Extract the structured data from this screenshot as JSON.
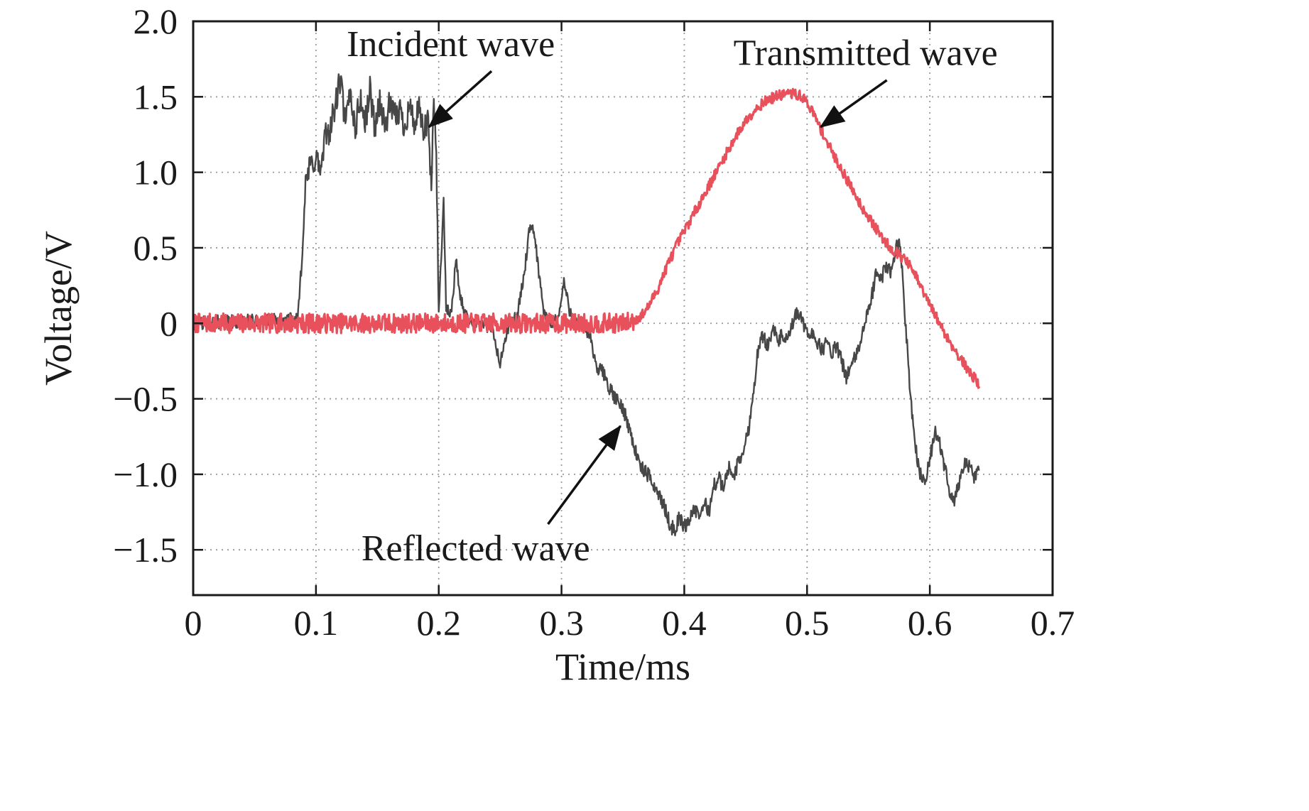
{
  "figure": {
    "background": "#ffffff"
  },
  "chart_data": {
    "type": "line",
    "title": "",
    "xlabel": "Time/ms",
    "ylabel": "Voltage/V",
    "xlim": [
      0,
      0.7
    ],
    "ylim": [
      -1.8,
      2.0
    ],
    "grid": {
      "on": true,
      "style": "dotted",
      "color": "#999999"
    },
    "frame_color": "#1a1a1a",
    "x_ticks": {
      "values": [
        0,
        0.1,
        0.2,
        0.3,
        0.4,
        0.5,
        0.6,
        0.7
      ],
      "labels": [
        "0",
        "0.1",
        "0.2",
        "0.3",
        "0.4",
        "0.5",
        "0.6",
        "0.7"
      ]
    },
    "y_ticks": {
      "values": [
        2.0,
        1.5,
        1.0,
        0.5,
        0,
        -0.5,
        -1.0,
        -1.5
      ],
      "labels": [
        "2.0",
        "1.5",
        "1.0",
        "0.5",
        "0",
        "−0.5",
        "−1.0",
        "−1.5"
      ]
    },
    "series": [
      {
        "name": "Incident / Reflected wave",
        "color": "#474747",
        "width": 2.4,
        "seed": 42,
        "sample_step": 0.0005,
        "noise": [
          {
            "t0": 0.0,
            "t1": 0.088,
            "amp": 0.05
          },
          {
            "t0": 0.088,
            "t1": 0.2,
            "amp": 0.1
          },
          {
            "t0": 0.2,
            "t1": 0.32,
            "amp": 0.045
          },
          {
            "t0": 0.32,
            "t1": 0.641,
            "amp": 0.05
          }
        ],
        "keypoints": [
          [
            0.0,
            0.0
          ],
          [
            0.085,
            0.02
          ],
          [
            0.088,
            0.4
          ],
          [
            0.092,
            0.95
          ],
          [
            0.096,
            1.05
          ],
          [
            0.1,
            1.1
          ],
          [
            0.104,
            1.0
          ],
          [
            0.108,
            1.25
          ],
          [
            0.112,
            1.3
          ],
          [
            0.116,
            1.45
          ],
          [
            0.12,
            1.62
          ],
          [
            0.124,
            1.3
          ],
          [
            0.128,
            1.55
          ],
          [
            0.132,
            1.28
          ],
          [
            0.136,
            1.5
          ],
          [
            0.14,
            1.32
          ],
          [
            0.144,
            1.55
          ],
          [
            0.148,
            1.3
          ],
          [
            0.152,
            1.48
          ],
          [
            0.156,
            1.28
          ],
          [
            0.16,
            1.45
          ],
          [
            0.164,
            1.35
          ],
          [
            0.168,
            1.42
          ],
          [
            0.172,
            1.3
          ],
          [
            0.176,
            1.45
          ],
          [
            0.18,
            1.32
          ],
          [
            0.184,
            1.4
          ],
          [
            0.188,
            1.25
          ],
          [
            0.191,
            1.35
          ],
          [
            0.194,
            0.9
          ],
          [
            0.196,
            1.45
          ],
          [
            0.198,
            1.2
          ],
          [
            0.2,
            0.05
          ],
          [
            0.202,
            0.45
          ],
          [
            0.204,
            0.8
          ],
          [
            0.206,
            0.1
          ],
          [
            0.21,
            0.05
          ],
          [
            0.214,
            0.42
          ],
          [
            0.218,
            0.15
          ],
          [
            0.222,
            0.05
          ],
          [
            0.228,
            0.02
          ],
          [
            0.236,
            0.0
          ],
          [
            0.244,
            -0.05
          ],
          [
            0.25,
            -0.28
          ],
          [
            0.254,
            -0.1
          ],
          [
            0.258,
            0.0
          ],
          [
            0.264,
            0.05
          ],
          [
            0.27,
            0.35
          ],
          [
            0.274,
            0.62
          ],
          [
            0.278,
            0.6
          ],
          [
            0.282,
            0.3
          ],
          [
            0.286,
            0.05
          ],
          [
            0.292,
            0.0
          ],
          [
            0.298,
            0.05
          ],
          [
            0.302,
            0.28
          ],
          [
            0.306,
            0.1
          ],
          [
            0.312,
            0.0
          ],
          [
            0.318,
            -0.02
          ],
          [
            0.324,
            -0.1
          ],
          [
            0.328,
            -0.3
          ],
          [
            0.334,
            -0.32
          ],
          [
            0.34,
            -0.45
          ],
          [
            0.346,
            -0.52
          ],
          [
            0.352,
            -0.6
          ],
          [
            0.358,
            -0.78
          ],
          [
            0.364,
            -0.95
          ],
          [
            0.37,
            -1.0
          ],
          [
            0.376,
            -1.08
          ],
          [
            0.382,
            -1.18
          ],
          [
            0.388,
            -1.32
          ],
          [
            0.392,
            -1.38
          ],
          [
            0.396,
            -1.28
          ],
          [
            0.4,
            -1.35
          ],
          [
            0.404,
            -1.3
          ],
          [
            0.408,
            -1.22
          ],
          [
            0.412,
            -1.3
          ],
          [
            0.416,
            -1.18
          ],
          [
            0.42,
            -1.25
          ],
          [
            0.424,
            -1.08
          ],
          [
            0.428,
            -1.02
          ],
          [
            0.432,
            -1.1
          ],
          [
            0.436,
            -0.95
          ],
          [
            0.44,
            -1.02
          ],
          [
            0.444,
            -0.92
          ],
          [
            0.448,
            -0.85
          ],
          [
            0.452,
            -0.72
          ],
          [
            0.456,
            -0.48
          ],
          [
            0.46,
            -0.18
          ],
          [
            0.464,
            -0.08
          ],
          [
            0.468,
            -0.15
          ],
          [
            0.472,
            -0.02
          ],
          [
            0.476,
            -0.12
          ],
          [
            0.48,
            -0.08
          ],
          [
            0.484,
            -0.12
          ],
          [
            0.488,
            -0.02
          ],
          [
            0.492,
            0.08
          ],
          [
            0.496,
            0.02
          ],
          [
            0.5,
            -0.08
          ],
          [
            0.504,
            -0.05
          ],
          [
            0.508,
            -0.12
          ],
          [
            0.512,
            -0.18
          ],
          [
            0.516,
            -0.12
          ],
          [
            0.52,
            -0.2
          ],
          [
            0.524,
            -0.15
          ],
          [
            0.528,
            -0.25
          ],
          [
            0.532,
            -0.35
          ],
          [
            0.536,
            -0.28
          ],
          [
            0.54,
            -0.22
          ],
          [
            0.544,
            -0.1
          ],
          [
            0.548,
            0.02
          ],
          [
            0.552,
            0.15
          ],
          [
            0.556,
            0.32
          ],
          [
            0.56,
            0.28
          ],
          [
            0.564,
            0.38
          ],
          [
            0.568,
            0.35
          ],
          [
            0.572,
            0.48
          ],
          [
            0.575,
            0.55
          ],
          [
            0.578,
            0.3
          ],
          [
            0.581,
            -0.1
          ],
          [
            0.584,
            -0.45
          ],
          [
            0.588,
            -0.8
          ],
          [
            0.592,
            -1.0
          ],
          [
            0.596,
            -1.05
          ],
          [
            0.6,
            -0.9
          ],
          [
            0.604,
            -0.72
          ],
          [
            0.608,
            -0.8
          ],
          [
            0.612,
            -0.95
          ],
          [
            0.616,
            -1.1
          ],
          [
            0.62,
            -1.18
          ],
          [
            0.624,
            -1.05
          ],
          [
            0.628,
            -0.92
          ],
          [
            0.632,
            -0.95
          ],
          [
            0.636,
            -1.02
          ],
          [
            0.64,
            -0.98
          ]
        ]
      },
      {
        "name": "Transmitted wave",
        "color": "#e8505b",
        "width": 3.2,
        "seed": 7,
        "sample_step": 0.0005,
        "noise": [
          {
            "t0": 0.0,
            "t1": 0.36,
            "amp": 0.065
          },
          {
            "t0": 0.36,
            "t1": 0.641,
            "amp": 0.035
          }
        ],
        "keypoints": [
          [
            0.0,
            0.0
          ],
          [
            0.35,
            0.0
          ],
          [
            0.356,
            0.01
          ],
          [
            0.36,
            0.02
          ],
          [
            0.365,
            0.05
          ],
          [
            0.37,
            0.1
          ],
          [
            0.378,
            0.22
          ],
          [
            0.386,
            0.38
          ],
          [
            0.394,
            0.52
          ],
          [
            0.402,
            0.64
          ],
          [
            0.41,
            0.76
          ],
          [
            0.418,
            0.88
          ],
          [
            0.426,
            1.0
          ],
          [
            0.434,
            1.12
          ],
          [
            0.442,
            1.24
          ],
          [
            0.45,
            1.34
          ],
          [
            0.458,
            1.42
          ],
          [
            0.466,
            1.47
          ],
          [
            0.474,
            1.5
          ],
          [
            0.482,
            1.52
          ],
          [
            0.49,
            1.52
          ],
          [
            0.496,
            1.5
          ],
          [
            0.502,
            1.44
          ],
          [
            0.508,
            1.34
          ],
          [
            0.514,
            1.24
          ],
          [
            0.52,
            1.14
          ],
          [
            0.528,
            1.02
          ],
          [
            0.536,
            0.9
          ],
          [
            0.544,
            0.78
          ],
          [
            0.552,
            0.68
          ],
          [
            0.56,
            0.58
          ],
          [
            0.568,
            0.5
          ],
          [
            0.576,
            0.45
          ],
          [
            0.582,
            0.4
          ],
          [
            0.588,
            0.32
          ],
          [
            0.594,
            0.22
          ],
          [
            0.6,
            0.12
          ],
          [
            0.608,
            0.0
          ],
          [
            0.616,
            -0.12
          ],
          [
            0.624,
            -0.22
          ],
          [
            0.632,
            -0.32
          ],
          [
            0.638,
            -0.38
          ],
          [
            0.64,
            -0.4
          ]
        ]
      }
    ],
    "annotations": [
      {
        "text": "Incident wave",
        "x": 0.125,
        "y": 1.85,
        "arrow": {
          "x1": 0.243,
          "y1": 1.67,
          "x2": 0.192,
          "y2": 1.3
        }
      },
      {
        "text": "Transmitted wave",
        "x": 0.44,
        "y": 1.79,
        "arrow": {
          "x1": 0.565,
          "y1": 1.61,
          "x2": 0.511,
          "y2": 1.3
        }
      },
      {
        "text": "Reflected wave",
        "x": 0.137,
        "y": -1.49,
        "arrow": {
          "x1": 0.289,
          "y1": -1.33,
          "x2": 0.348,
          "y2": -0.68
        }
      }
    ]
  }
}
